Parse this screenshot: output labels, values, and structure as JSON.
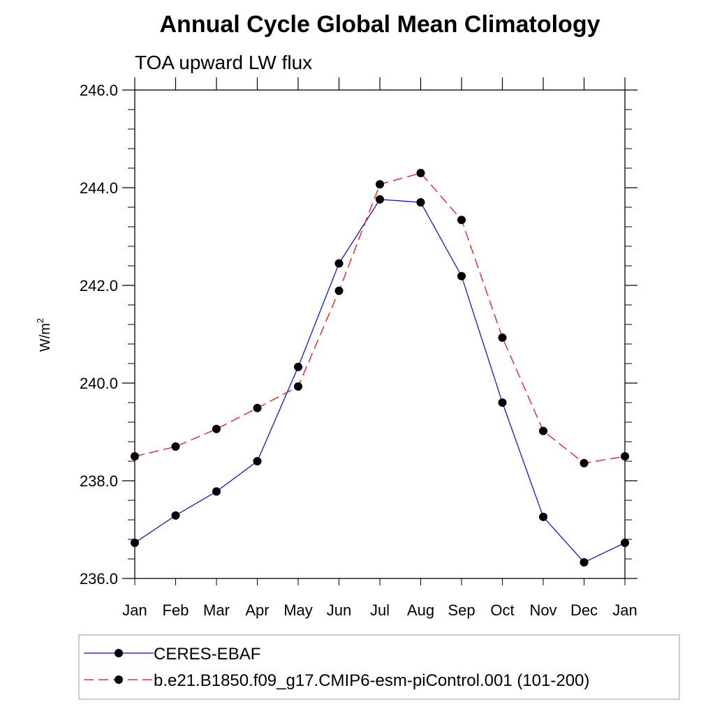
{
  "chart_data": {
    "type": "line",
    "title": "Annual Cycle Global Mean Climatology",
    "subtitle": "TOA upward LW flux",
    "xlabel": "",
    "ylabel": "W/m",
    "ylabel_superscript": "2",
    "categories": [
      "Jan",
      "Feb",
      "Mar",
      "Apr",
      "May",
      "Jun",
      "Jul",
      "Aug",
      "Sep",
      "Oct",
      "Nov",
      "Dec",
      "Jan"
    ],
    "ylim": [
      236.0,
      246.0
    ],
    "yticks": [
      236.0,
      238.0,
      240.0,
      242.0,
      244.0,
      246.0
    ],
    "ytick_labels": [
      "236.0",
      "238.0",
      "240.0",
      "242.0",
      "244.0",
      "246.0"
    ],
    "yminor_step": 0.4,
    "grid": false,
    "legend_position": "bottom",
    "series": [
      {
        "name": "CERES-EBAF",
        "color": "#0000ff",
        "line_style": "solid",
        "marker": "filled-circle",
        "marker_color": "#000000",
        "values": [
          236.73,
          237.29,
          237.78,
          238.4,
          240.33,
          242.45,
          243.76,
          243.7,
          242.19,
          239.6,
          237.26,
          236.33,
          236.73
        ]
      },
      {
        "name": "b.e21.B1850.f09_g17.CMIP6-esm-piControl.001 (101-200)",
        "color": "#ff0000",
        "line_style": "dashed",
        "marker": "filled-circle",
        "marker_color": "#000000",
        "values": [
          238.5,
          238.7,
          239.06,
          239.49,
          239.93,
          241.89,
          244.07,
          244.3,
          243.34,
          240.93,
          239.02,
          238.36,
          238.5
        ]
      }
    ]
  }
}
